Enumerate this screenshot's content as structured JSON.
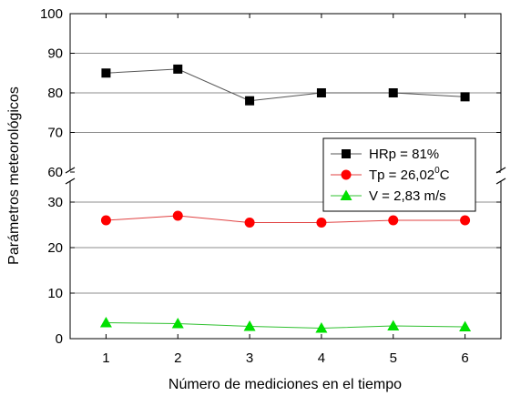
{
  "chart_data": {
    "type": "line",
    "xlabel": "Número de mediciones en el tiempo",
    "ylabel": "Parámetros meteorológicos",
    "x": [
      1,
      2,
      3,
      4,
      5,
      6
    ],
    "xlim": [
      0.5,
      6.5
    ],
    "y_axis_break": true,
    "ylim_upper": [
      60,
      100
    ],
    "ylim_lower": [
      0,
      35
    ],
    "y_ticks_upper": [
      "60",
      "70",
      "80",
      "90",
      "100"
    ],
    "y_ticks_lower": [
      "0",
      "10",
      "20",
      "30"
    ],
    "x_ticks": [
      "1",
      "2",
      "3",
      "4",
      "5",
      "6"
    ],
    "grid": "horizontal",
    "legend_position": "right-center",
    "series": [
      {
        "name": "HRp = 81%",
        "legend_main": "HRp = 81%",
        "legend_sup": "",
        "legend_tail": "",
        "marker": "square",
        "color": "#000000",
        "line_color": "#555555",
        "values": [
          85,
          86,
          78,
          80,
          80,
          79
        ]
      },
      {
        "name": "Tp = 26,02°C",
        "legend_main": "Tp = 26,02",
        "legend_sup": "0",
        "legend_tail": "C",
        "marker": "circle",
        "color": "#ff0000",
        "line_color": "#e04040",
        "values": [
          26,
          27,
          25.5,
          25.5,
          26,
          26
        ]
      },
      {
        "name": "V = 2,83 m/s",
        "legend_main": "V = 2,83 m/s",
        "legend_sup": "",
        "legend_tail": "",
        "marker": "triangle",
        "color": "#00e000",
        "line_color": "#30c030",
        "values": [
          3.5,
          3.3,
          2.7,
          2.3,
          2.8,
          2.6
        ]
      }
    ]
  }
}
